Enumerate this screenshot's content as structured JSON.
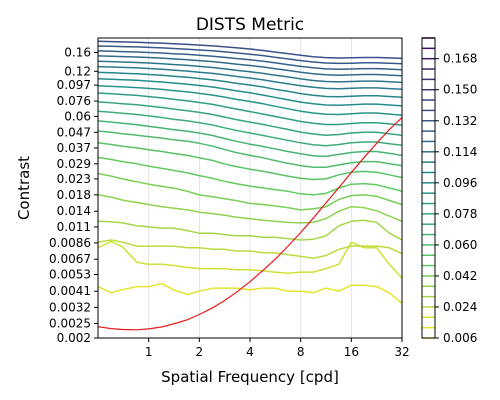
{
  "chart_data": {
    "type": "contour",
    "title": "DISTS Metric",
    "xlabel": "Spatial Frequency [cpd]",
    "ylabel": "Contrast",
    "xscale": "log",
    "yscale": "log",
    "xlim": [
      0.5,
      32
    ],
    "ylim": [
      0.002,
      0.2
    ],
    "xticks": [
      1,
      2,
      4,
      8,
      16,
      32
    ],
    "xtick_labels": [
      "1",
      "2",
      "4",
      "8",
      "16",
      "32"
    ],
    "yticks": [
      0.002,
      0.0025,
      0.0032,
      0.0041,
      0.0053,
      0.0067,
      0.0086,
      0.011,
      0.014,
      0.018,
      0.023,
      0.029,
      0.037,
      0.047,
      0.06,
      0.076,
      0.097,
      0.12,
      0.16
    ],
    "ytick_labels": [
      "0.002",
      "0.0025",
      "0.0032",
      "0.0041",
      "0.0053",
      "0.0067",
      "0.0086",
      "0.011",
      "0.014",
      "0.018",
      "0.023",
      "0.029",
      "0.037",
      "0.047",
      "0.06",
      "0.076",
      "0.097",
      "0.12",
      "0.16"
    ],
    "grid": "x",
    "colormap": "viridis",
    "colorbar": {
      "min": 0.006,
      "max": 0.18,
      "ticks": [
        0.006,
        0.024,
        0.042,
        0.06,
        0.078,
        0.096,
        0.114,
        0.132,
        0.15,
        0.168
      ],
      "tick_labels": [
        "0.006",
        "0.024",
        "0.042",
        "0.060",
        "0.078",
        "0.096",
        "0.114",
        "0.132",
        "0.150",
        "0.168"
      ]
    },
    "contour_x": [
      0.5,
      0.6,
      0.7,
      0.85,
      1.0,
      1.2,
      1.4,
      1.7,
      2.0,
      2.4,
      2.8,
      3.3,
      4.0,
      4.8,
      5.6,
      6.7,
      8.0,
      9.5,
      11.3,
      13.5,
      16.0,
      19.0,
      22.6,
      26.9,
      32.0
    ],
    "contour_levels": [
      {
        "level": 0.012,
        "y": [
          0.0044,
          0.004,
          0.0042,
          0.0044,
          0.0044,
          0.0046,
          0.0042,
          0.0039,
          0.0041,
          0.0043,
          0.0043,
          0.0043,
          0.0042,
          0.0043,
          0.0043,
          0.0041,
          0.0041,
          0.004,
          0.0043,
          0.0041,
          0.0045,
          0.0045,
          0.0044,
          0.004,
          0.0034
        ]
      },
      {
        "level": 0.018,
        "y": [
          0.008,
          0.0088,
          0.0081,
          0.0064,
          0.0062,
          0.0062,
          0.0061,
          0.0059,
          0.0058,
          0.0058,
          0.0058,
          0.0057,
          0.0057,
          0.0056,
          0.0055,
          0.0054,
          0.0055,
          0.0055,
          0.0058,
          0.0062,
          0.0087,
          0.008,
          0.008,
          0.0062,
          0.005
        ]
      },
      {
        "level": 0.024,
        "y": [
          0.0087,
          0.009,
          0.0087,
          0.0082,
          0.0082,
          0.0082,
          0.0082,
          0.008,
          0.008,
          0.0078,
          0.0078,
          0.0076,
          0.0076,
          0.0074,
          0.0074,
          0.0072,
          0.007,
          0.0068,
          0.0071,
          0.0078,
          0.0082,
          0.0082,
          0.0082,
          0.008,
          0.0073
        ]
      },
      {
        "level": 0.03,
        "y": [
          0.012,
          0.0119,
          0.0117,
          0.0112,
          0.011,
          0.0108,
          0.0108,
          0.0104,
          0.01,
          0.01,
          0.0098,
          0.0096,
          0.0096,
          0.0094,
          0.0094,
          0.0092,
          0.009,
          0.0091,
          0.0096,
          0.0112,
          0.012,
          0.0122,
          0.0118,
          0.01,
          0.009
        ]
      },
      {
        "level": 0.036,
        "y": [
          0.018,
          0.0174,
          0.0166,
          0.016,
          0.0155,
          0.015,
          0.0147,
          0.0143,
          0.0138,
          0.0135,
          0.0132,
          0.0128,
          0.0125,
          0.0122,
          0.012,
          0.0118,
          0.0117,
          0.0118,
          0.0125,
          0.014,
          0.015,
          0.0148,
          0.0141,
          0.013,
          0.012
        ]
      },
      {
        "level": 0.042,
        "y": [
          0.025,
          0.024,
          0.023,
          0.022,
          0.0212,
          0.0205,
          0.02,
          0.019,
          0.018,
          0.0175,
          0.017,
          0.0165,
          0.0158,
          0.0155,
          0.0152,
          0.0148,
          0.0143,
          0.0145,
          0.015,
          0.0168,
          0.0178,
          0.018,
          0.0176,
          0.0165,
          0.0155
        ]
      },
      {
        "level": 0.048,
        "y": [
          0.032,
          0.031,
          0.03,
          0.029,
          0.028,
          0.027,
          0.0262,
          0.0252,
          0.0242,
          0.0232,
          0.0222,
          0.0214,
          0.0206,
          0.02,
          0.0195,
          0.019,
          0.0183,
          0.018,
          0.0184,
          0.02,
          0.0212,
          0.0214,
          0.021,
          0.02,
          0.019
        ]
      },
      {
        "level": 0.054,
        "y": [
          0.04,
          0.039,
          0.038,
          0.037,
          0.036,
          0.035,
          0.034,
          0.033,
          0.0318,
          0.0305,
          0.029,
          0.0278,
          0.0267,
          0.0258,
          0.025,
          0.024,
          0.0232,
          0.0228,
          0.023,
          0.0245,
          0.0255,
          0.0258,
          0.0255,
          0.0245,
          0.0235
        ]
      },
      {
        "level": 0.06,
        "y": [
          0.048,
          0.047,
          0.046,
          0.045,
          0.044,
          0.043,
          0.042,
          0.041,
          0.0397,
          0.038,
          0.0362,
          0.0345,
          0.033,
          0.0318,
          0.0305,
          0.0292,
          0.0282,
          0.0275,
          0.0275,
          0.0285,
          0.0295,
          0.03,
          0.03,
          0.029,
          0.0282
        ]
      },
      {
        "level": 0.066,
        "y": [
          0.056,
          0.055,
          0.054,
          0.0528,
          0.0515,
          0.0502,
          0.049,
          0.0478,
          0.0465,
          0.0448,
          0.0428,
          0.041,
          0.0392,
          0.0378,
          0.0365,
          0.035,
          0.0338,
          0.0328,
          0.0325,
          0.0335,
          0.0345,
          0.035,
          0.035,
          0.034,
          0.033
        ]
      },
      {
        "level": 0.072,
        "y": [
          0.065,
          0.064,
          0.063,
          0.0618,
          0.0605,
          0.059,
          0.0575,
          0.056,
          0.0545,
          0.0526,
          0.0505,
          0.0485,
          0.0465,
          0.0448,
          0.0432,
          0.0416,
          0.04,
          0.0388,
          0.0382,
          0.039,
          0.04,
          0.0405,
          0.0405,
          0.0395,
          0.0385
        ]
      },
      {
        "level": 0.078,
        "y": [
          0.075,
          0.074,
          0.073,
          0.0718,
          0.0704,
          0.0688,
          0.0672,
          0.0655,
          0.0638,
          0.0618,
          0.0595,
          0.0572,
          0.055,
          0.053,
          0.0512,
          0.0492,
          0.0472,
          0.0458,
          0.045,
          0.0455,
          0.0465,
          0.047,
          0.047,
          0.046,
          0.045
        ]
      },
      {
        "level": 0.084,
        "y": [
          0.086,
          0.085,
          0.084,
          0.0828,
          0.0814,
          0.0798,
          0.078,
          0.0762,
          0.0743,
          0.0722,
          0.0698,
          0.0672,
          0.0646,
          0.0622,
          0.06,
          0.0578,
          0.0555,
          0.054,
          0.053,
          0.053,
          0.0538,
          0.0545,
          0.0545,
          0.0535,
          0.0525
        ]
      },
      {
        "level": 0.09,
        "y": [
          0.096,
          0.0952,
          0.0944,
          0.0934,
          0.0922,
          0.0908,
          0.0892,
          0.0874,
          0.0854,
          0.0832,
          0.0808,
          0.0782,
          0.0755,
          0.0728,
          0.0702,
          0.0676,
          0.065,
          0.0632,
          0.062,
          0.0618,
          0.0625,
          0.0632,
          0.0632,
          0.0622,
          0.0612
        ]
      },
      {
        "level": 0.096,
        "y": [
          0.107,
          0.1062,
          0.1054,
          0.1044,
          0.1032,
          0.1018,
          0.1002,
          0.0984,
          0.0964,
          0.0942,
          0.0917,
          0.089,
          0.0862,
          0.0833,
          0.0805,
          0.0776,
          0.0748,
          0.0728,
          0.0715,
          0.0712,
          0.0718,
          0.0725,
          0.0725,
          0.0715,
          0.0705
        ]
      },
      {
        "level": 0.102,
        "y": [
          0.118,
          0.1172,
          0.1164,
          0.1154,
          0.1142,
          0.1128,
          0.1112,
          0.1094,
          0.1074,
          0.1052,
          0.1027,
          0.1,
          0.0972,
          0.0942,
          0.0912,
          0.0882,
          0.0852,
          0.083,
          0.0815,
          0.0812,
          0.0818,
          0.0825,
          0.0825,
          0.0815,
          0.0805
        ]
      },
      {
        "level": 0.108,
        "y": [
          0.129,
          0.1282,
          0.1274,
          0.1264,
          0.1252,
          0.1238,
          0.1222,
          0.1204,
          0.1184,
          0.1162,
          0.1137,
          0.111,
          0.1082,
          0.1052,
          0.1022,
          0.0992,
          0.0962,
          0.0938,
          0.0922,
          0.0918,
          0.0924,
          0.093,
          0.093,
          0.092,
          0.091
        ]
      },
      {
        "level": 0.114,
        "y": [
          0.14,
          0.1392,
          0.1384,
          0.1374,
          0.1362,
          0.1348,
          0.1332,
          0.1314,
          0.1294,
          0.1272,
          0.1247,
          0.122,
          0.1192,
          0.1162,
          0.1132,
          0.11,
          0.1068,
          0.1042,
          0.1025,
          0.102,
          0.1025,
          0.1032,
          0.1032,
          0.1022,
          0.1012
        ]
      },
      {
        "level": 0.12,
        "y": [
          0.152,
          0.1512,
          0.1504,
          0.1494,
          0.1482,
          0.1468,
          0.1452,
          0.1434,
          0.1414,
          0.1392,
          0.1367,
          0.134,
          0.1312,
          0.1282,
          0.125,
          0.1216,
          0.1182,
          0.1155,
          0.1136,
          0.113,
          0.1135,
          0.1142,
          0.1142,
          0.1132,
          0.1122
        ]
      },
      {
        "level": 0.126,
        "y": [
          0.164,
          0.1632,
          0.1624,
          0.1614,
          0.1602,
          0.1588,
          0.1572,
          0.1554,
          0.1534,
          0.1512,
          0.1487,
          0.146,
          0.1432,
          0.14,
          0.1366,
          0.133,
          0.1294,
          0.1265,
          0.1245,
          0.1238,
          0.1242,
          0.125,
          0.125,
          0.124,
          0.123
        ]
      },
      {
        "level": 0.132,
        "y": [
          0.177,
          0.1762,
          0.1754,
          0.1744,
          0.1732,
          0.1718,
          0.1702,
          0.1684,
          0.1664,
          0.1642,
          0.1617,
          0.159,
          0.156,
          0.1526,
          0.149,
          0.1452,
          0.1414,
          0.1384,
          0.1362,
          0.1355,
          0.1358,
          0.1366,
          0.1366,
          0.1356,
          0.1346
        ]
      },
      {
        "level": 0.138,
        "y": [
          0.19,
          0.1892,
          0.1884,
          0.1874,
          0.1862,
          0.1848,
          0.1832,
          0.1814,
          0.1794,
          0.1772,
          0.1747,
          0.172,
          0.1688,
          0.1652,
          0.1614,
          0.1574,
          0.1534,
          0.1502,
          0.148,
          0.1472,
          0.1475,
          0.1483,
          0.1483,
          0.1473,
          0.1463
        ]
      }
    ],
    "threshold_curve": {
      "color": "#e41a1c",
      "x": [
        0.5,
        0.6,
        0.7,
        0.85,
        1.0,
        1.2,
        1.4,
        1.7,
        2.0,
        2.4,
        2.8,
        3.3,
        4.0,
        4.8,
        5.6,
        6.7,
        8.0,
        9.5,
        11.3,
        13.5,
        16.0,
        19.0,
        22.6,
        26.9,
        32.0
      ],
      "y": [
        0.00238,
        0.00231,
        0.00228,
        0.00227,
        0.0023,
        0.00237,
        0.00248,
        0.00265,
        0.00287,
        0.00318,
        0.00353,
        0.00401,
        0.00475,
        0.00567,
        0.00664,
        0.00815,
        0.0101,
        0.01259,
        0.01588,
        0.02012,
        0.02537,
        0.03183,
        0.03967,
        0.04904,
        0.059
      ]
    }
  }
}
